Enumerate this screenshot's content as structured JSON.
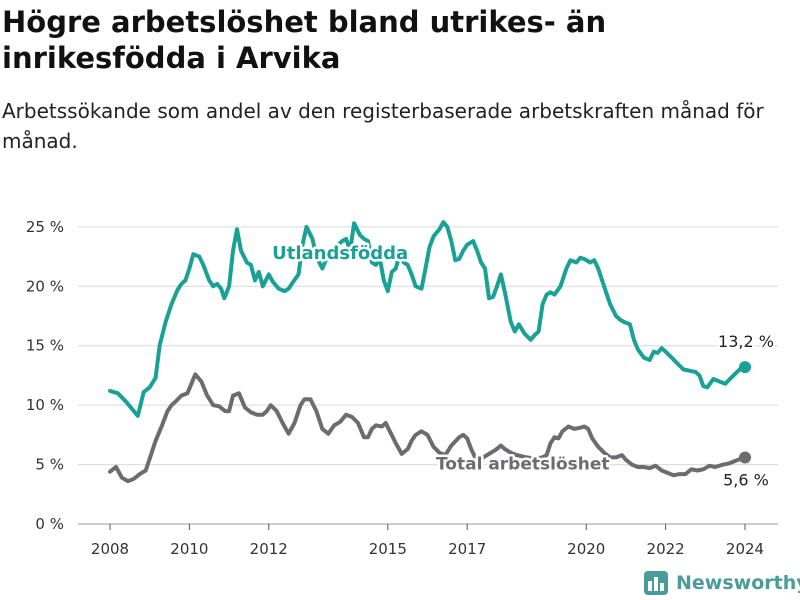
{
  "title": "Högre arbetslöshet bland utrikes- än inrikesfödda i Arvika",
  "subtitle": "Arbetssökande som andel av den registerbaserade arbetskraften månad för månad.",
  "brand": {
    "name": "Newsworthy",
    "icon": "newsworthy-logo-icon",
    "color": "#4a9c9a"
  },
  "colors": {
    "foreign_born": "#1aa196",
    "total": "#6e6a72",
    "grid": "#d9d9d9",
    "axis_text": "#333333"
  },
  "chart_data": {
    "type": "line",
    "title": "Högre arbetslöshet bland utrikes- än inrikesfödda i Arvika",
    "subtitle": "Arbetssökande som andel av den registerbaserade arbetskraften månad för månad.",
    "xlabel": "",
    "ylabel": "",
    "xlim": [
      2007.5,
      2025.4
    ],
    "ylim": [
      0,
      26
    ],
    "x_ticks": [
      2008,
      2010,
      2012,
      2015,
      2017,
      2020,
      2022,
      2024
    ],
    "x_tick_labels": [
      "2008",
      "2010",
      "2012",
      "2015",
      "2017",
      "2020",
      "2022",
      "2024"
    ],
    "y_ticks": [
      0,
      5,
      10,
      15,
      20,
      25
    ],
    "y_tick_labels": [
      "0 %",
      "5 %",
      "10 %",
      "15 %",
      "20 %",
      "25 %"
    ],
    "grid": "horizontal",
    "legend": "inline labels",
    "series": [
      {
        "name": "Utlandsfödda",
        "color": "#1aa196",
        "end_label": "13,2 %",
        "points": [
          [
            2008.0,
            11.2
          ],
          [
            2008.2,
            11.0
          ],
          [
            2008.4,
            10.3
          ],
          [
            2008.55,
            9.7
          ],
          [
            2008.7,
            9.1
          ],
          [
            2008.85,
            11.1
          ],
          [
            2009.0,
            11.5
          ],
          [
            2009.15,
            12.3
          ],
          [
            2009.25,
            15.0
          ],
          [
            2009.4,
            17.0
          ],
          [
            2009.55,
            18.5
          ],
          [
            2009.7,
            19.7
          ],
          [
            2009.8,
            20.2
          ],
          [
            2009.9,
            20.5
          ],
          [
            2010.0,
            21.5
          ],
          [
            2010.1,
            22.7
          ],
          [
            2010.25,
            22.5
          ],
          [
            2010.35,
            21.8
          ],
          [
            2010.5,
            20.5
          ],
          [
            2010.6,
            20.0
          ],
          [
            2010.7,
            20.2
          ],
          [
            2010.8,
            19.8
          ],
          [
            2010.88,
            19.0
          ],
          [
            2011.0,
            20.0
          ],
          [
            2011.1,
            23.0
          ],
          [
            2011.2,
            24.8
          ],
          [
            2011.3,
            23.0
          ],
          [
            2011.45,
            22.0
          ],
          [
            2011.55,
            21.8
          ],
          [
            2011.65,
            20.5
          ],
          [
            2011.75,
            21.2
          ],
          [
            2011.85,
            20.0
          ],
          [
            2012.0,
            21.0
          ],
          [
            2012.1,
            20.4
          ],
          [
            2012.25,
            19.8
          ],
          [
            2012.4,
            19.6
          ],
          [
            2012.5,
            19.8
          ],
          [
            2012.6,
            20.3
          ],
          [
            2012.75,
            21.0
          ],
          [
            2012.85,
            23.5
          ],
          [
            2012.95,
            25.0
          ],
          [
            2013.1,
            24.0
          ],
          [
            2013.2,
            22.5
          ],
          [
            2013.35,
            21.5
          ],
          [
            2013.45,
            22.3
          ],
          [
            2013.6,
            23.0
          ],
          [
            2013.75,
            23.5
          ],
          [
            2013.85,
            23.8
          ],
          [
            2013.95,
            24.0
          ],
          [
            2014.05,
            23.0
          ],
          [
            2014.15,
            25.3
          ],
          [
            2014.3,
            24.3
          ],
          [
            2014.4,
            24.0
          ],
          [
            2014.5,
            23.8
          ],
          [
            2014.6,
            22.0
          ],
          [
            2014.7,
            21.8
          ],
          [
            2014.8,
            22.3
          ],
          [
            2014.9,
            20.5
          ],
          [
            2015.0,
            19.6
          ],
          [
            2015.1,
            21.2
          ],
          [
            2015.2,
            21.5
          ],
          [
            2015.3,
            22.7
          ],
          [
            2015.4,
            22.0
          ],
          [
            2015.5,
            21.8
          ],
          [
            2015.6,
            21.0
          ],
          [
            2015.7,
            20.0
          ],
          [
            2015.85,
            19.8
          ],
          [
            2015.95,
            21.5
          ],
          [
            2016.05,
            23.3
          ],
          [
            2016.15,
            24.2
          ],
          [
            2016.3,
            24.8
          ],
          [
            2016.4,
            25.4
          ],
          [
            2016.5,
            25.0
          ],
          [
            2016.6,
            23.8
          ],
          [
            2016.7,
            22.2
          ],
          [
            2016.8,
            22.3
          ],
          [
            2016.9,
            23.0
          ],
          [
            2017.0,
            23.5
          ],
          [
            2017.15,
            23.8
          ],
          [
            2017.25,
            23.0
          ],
          [
            2017.35,
            22.0
          ],
          [
            2017.45,
            21.5
          ],
          [
            2017.55,
            19.0
          ],
          [
            2017.65,
            19.1
          ],
          [
            2017.75,
            20.0
          ],
          [
            2017.85,
            21.0
          ],
          [
            2017.95,
            19.5
          ],
          [
            2018.1,
            17.0
          ],
          [
            2018.2,
            16.2
          ],
          [
            2018.3,
            16.8
          ],
          [
            2018.45,
            16.0
          ],
          [
            2018.6,
            15.5
          ],
          [
            2018.7,
            15.9
          ],
          [
            2018.8,
            16.2
          ],
          [
            2018.9,
            18.5
          ],
          [
            2019.0,
            19.3
          ],
          [
            2019.1,
            19.5
          ],
          [
            2019.2,
            19.3
          ],
          [
            2019.35,
            20.0
          ],
          [
            2019.5,
            21.5
          ],
          [
            2019.6,
            22.2
          ],
          [
            2019.75,
            22.0
          ],
          [
            2019.85,
            22.4
          ],
          [
            2019.95,
            22.3
          ],
          [
            2020.1,
            22.0
          ],
          [
            2020.2,
            22.2
          ],
          [
            2020.3,
            21.5
          ],
          [
            2020.4,
            20.5
          ],
          [
            2020.5,
            19.5
          ],
          [
            2020.6,
            18.5
          ],
          [
            2020.75,
            17.5
          ],
          [
            2020.85,
            17.2
          ],
          [
            2020.95,
            17.0
          ],
          [
            2021.1,
            16.8
          ],
          [
            2021.2,
            15.5
          ],
          [
            2021.3,
            14.7
          ],
          [
            2021.45,
            14.0
          ],
          [
            2021.6,
            13.8
          ],
          [
            2021.7,
            14.5
          ],
          [
            2021.8,
            14.4
          ],
          [
            2021.9,
            14.8
          ],
          [
            2022.0,
            14.5
          ],
          [
            2022.15,
            14.0
          ],
          [
            2022.3,
            13.5
          ],
          [
            2022.45,
            13.0
          ],
          [
            2022.6,
            12.9
          ],
          [
            2022.75,
            12.8
          ],
          [
            2022.85,
            12.5
          ],
          [
            2022.95,
            11.6
          ],
          [
            2023.05,
            11.5
          ],
          [
            2023.2,
            12.2
          ],
          [
            2023.35,
            12.0
          ],
          [
            2023.5,
            11.8
          ],
          [
            2023.65,
            12.3
          ],
          [
            2023.8,
            12.8
          ],
          [
            2023.9,
            13.1
          ],
          [
            2024.0,
            13.2
          ]
        ]
      },
      {
        "name": "Total arbetslöshet",
        "color": "#6e6a72",
        "end_label": "5,6 %",
        "points": [
          [
            2008.0,
            4.4
          ],
          [
            2008.15,
            4.8
          ],
          [
            2008.3,
            3.9
          ],
          [
            2008.45,
            3.6
          ],
          [
            2008.6,
            3.8
          ],
          [
            2008.75,
            4.2
          ],
          [
            2008.9,
            4.5
          ],
          [
            2009.0,
            5.5
          ],
          [
            2009.15,
            7.0
          ],
          [
            2009.3,
            8.2
          ],
          [
            2009.45,
            9.5
          ],
          [
            2009.55,
            10.0
          ],
          [
            2009.65,
            10.3
          ],
          [
            2009.8,
            10.8
          ],
          [
            2009.95,
            11.0
          ],
          [
            2010.05,
            11.8
          ],
          [
            2010.15,
            12.6
          ],
          [
            2010.3,
            12.0
          ],
          [
            2010.45,
            10.8
          ],
          [
            2010.6,
            10.0
          ],
          [
            2010.75,
            9.9
          ],
          [
            2010.9,
            9.5
          ],
          [
            2011.0,
            9.5
          ],
          [
            2011.1,
            10.8
          ],
          [
            2011.25,
            11.0
          ],
          [
            2011.4,
            9.8
          ],
          [
            2011.55,
            9.4
          ],
          [
            2011.7,
            9.2
          ],
          [
            2011.85,
            9.2
          ],
          [
            2011.95,
            9.5
          ],
          [
            2012.05,
            10.0
          ],
          [
            2012.2,
            9.5
          ],
          [
            2012.35,
            8.5
          ],
          [
            2012.5,
            7.6
          ],
          [
            2012.65,
            8.5
          ],
          [
            2012.8,
            10.0
          ],
          [
            2012.9,
            10.5
          ],
          [
            2013.05,
            10.5
          ],
          [
            2013.2,
            9.5
          ],
          [
            2013.35,
            8.0
          ],
          [
            2013.5,
            7.6
          ],
          [
            2013.65,
            8.3
          ],
          [
            2013.8,
            8.6
          ],
          [
            2013.95,
            9.2
          ],
          [
            2014.1,
            9.0
          ],
          [
            2014.25,
            8.5
          ],
          [
            2014.4,
            7.3
          ],
          [
            2014.5,
            7.3
          ],
          [
            2014.6,
            8.0
          ],
          [
            2014.7,
            8.3
          ],
          [
            2014.85,
            8.2
          ],
          [
            2014.95,
            8.5
          ],
          [
            2015.05,
            7.8
          ],
          [
            2015.2,
            6.8
          ],
          [
            2015.35,
            5.9
          ],
          [
            2015.5,
            6.3
          ],
          [
            2015.6,
            7.0
          ],
          [
            2015.7,
            7.5
          ],
          [
            2015.85,
            7.8
          ],
          [
            2016.0,
            7.5
          ],
          [
            2016.15,
            6.5
          ],
          [
            2016.3,
            6.0
          ],
          [
            2016.45,
            5.8
          ],
          [
            2016.6,
            6.6
          ],
          [
            2016.8,
            7.3
          ],
          [
            2016.9,
            7.5
          ],
          [
            2017.0,
            7.2
          ],
          [
            2017.1,
            6.3
          ],
          [
            2017.2,
            5.6
          ],
          [
            2017.35,
            5.5
          ],
          [
            2017.55,
            5.9
          ],
          [
            2017.7,
            6.2
          ],
          [
            2017.85,
            6.6
          ],
          [
            2017.95,
            6.3
          ],
          [
            2018.1,
            6.0
          ],
          [
            2018.25,
            5.8
          ],
          [
            2018.5,
            5.6
          ],
          [
            2018.7,
            5.5
          ],
          [
            2018.9,
            5.6
          ],
          [
            2019.0,
            5.8
          ],
          [
            2019.1,
            6.8
          ],
          [
            2019.2,
            7.3
          ],
          [
            2019.3,
            7.2
          ],
          [
            2019.4,
            7.8
          ],
          [
            2019.55,
            8.2
          ],
          [
            2019.7,
            8.0
          ],
          [
            2019.85,
            8.1
          ],
          [
            2019.95,
            8.2
          ],
          [
            2020.05,
            8.0
          ],
          [
            2020.15,
            7.2
          ],
          [
            2020.3,
            6.5
          ],
          [
            2020.45,
            6.0
          ],
          [
            2020.6,
            5.6
          ],
          [
            2020.75,
            5.6
          ],
          [
            2020.9,
            5.8
          ],
          [
            2021.0,
            5.4
          ],
          [
            2021.15,
            5.0
          ],
          [
            2021.3,
            4.8
          ],
          [
            2021.45,
            4.8
          ],
          [
            2021.6,
            4.7
          ],
          [
            2021.75,
            4.9
          ],
          [
            2021.9,
            4.5
          ],
          [
            2022.05,
            4.3
          ],
          [
            2022.2,
            4.1
          ],
          [
            2022.35,
            4.2
          ],
          [
            2022.5,
            4.2
          ],
          [
            2022.65,
            4.6
          ],
          [
            2022.8,
            4.5
          ],
          [
            2022.95,
            4.6
          ],
          [
            2023.1,
            4.9
          ],
          [
            2023.25,
            4.8
          ],
          [
            2023.45,
            5.0
          ],
          [
            2023.6,
            5.1
          ],
          [
            2023.75,
            5.3
          ],
          [
            2023.9,
            5.5
          ],
          [
            2024.0,
            5.6
          ]
        ]
      }
    ]
  }
}
